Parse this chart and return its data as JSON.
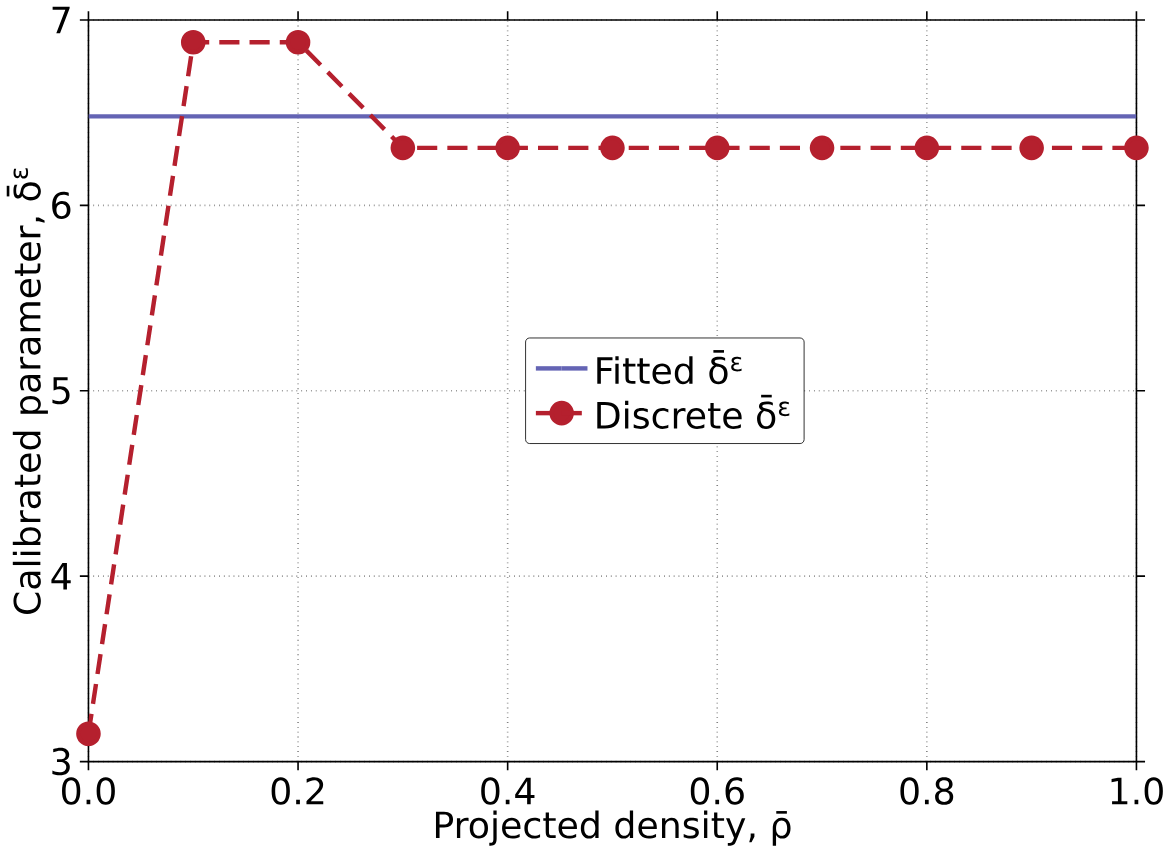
{
  "chart_data": {
    "type": "line",
    "xlabel": "Projected density, ρ̄",
    "ylabel": "Calibrated parameter, δ̄$^{ε}$",
    "xlim": [
      0,
      1
    ],
    "ylim": [
      3,
      7
    ],
    "xticks": [
      {
        "value": 0,
        "label": "0.0"
      },
      {
        "value": 0.2,
        "label": "0.2"
      },
      {
        "value": 0.4,
        "label": "0.4"
      },
      {
        "value": 0.6,
        "label": "0.6"
      },
      {
        "value": 0.8,
        "label": "0.8"
      },
      {
        "value": 1,
        "label": "1.0"
      }
    ],
    "yticks": [
      3,
      4,
      5,
      6,
      7
    ],
    "grid": true,
    "legend": "center",
    "series": [
      {
        "name": "Fitted δ̄$^{ε}$",
        "color": "#6464b4",
        "x": [
          0,
          1
        ],
        "values": [
          6.48,
          6.48
        ],
        "marker": "none",
        "line_style": "solid"
      },
      {
        "name": "Discrete δ̄$^{ε}$",
        "color": "#b5202e",
        "x": [
          0,
          0.1,
          0.2,
          0.3,
          0.4,
          0.5,
          0.6,
          0.7,
          0.8,
          0.9,
          1.0
        ],
        "values": [
          3.15,
          6.88,
          6.88,
          6.31,
          6.31,
          6.31,
          6.31,
          6.31,
          6.31,
          6.31,
          6.31
        ],
        "marker": "circle",
        "line_style": "dashed"
      }
    ]
  }
}
